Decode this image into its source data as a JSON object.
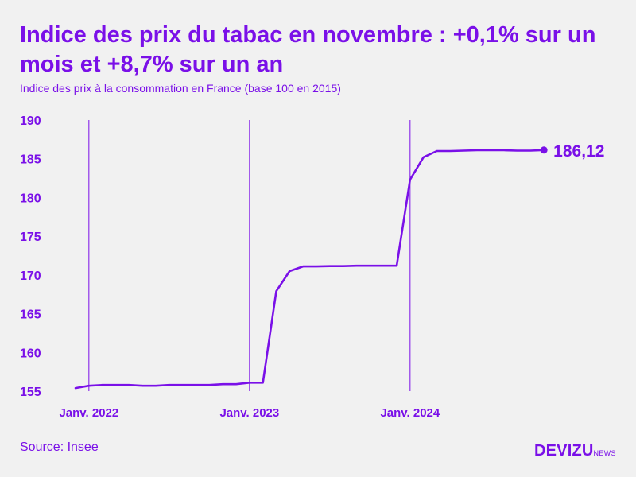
{
  "title": "Indice des prix du tabac en novembre : +0,1% sur un mois et +8,7% sur un an",
  "subtitle": "Indice des prix à la consommation en France (base 100 en 2015)",
  "source": "Source: Insee",
  "logo": {
    "main": "DEVIZU",
    "sub": "NEWS"
  },
  "colors": {
    "accent": "#7a10e8",
    "background": "#f1f1f1",
    "line": "#7a10e8"
  },
  "chart_data": {
    "type": "line",
    "title": "Indice des prix du tabac en novembre : +0,1% sur un mois et +8,7% sur un an",
    "subtitle": "Indice des prix à la consommation en France (base 100 en 2015)",
    "xlabel": "",
    "ylabel": "",
    "ylim": [
      155,
      190
    ],
    "yticks": [
      190,
      185,
      180,
      175,
      170,
      165,
      160,
      155
    ],
    "xticks": [
      "Janv. 2022",
      "Janv. 2023",
      "Janv. 2024"
    ],
    "x": [
      "2021-12",
      "2022-01",
      "2022-02",
      "2022-03",
      "2022-04",
      "2022-05",
      "2022-06",
      "2022-07",
      "2022-08",
      "2022-09",
      "2022-10",
      "2022-11",
      "2022-12",
      "2023-01",
      "2023-02",
      "2023-03",
      "2023-04",
      "2023-05",
      "2023-06",
      "2023-07",
      "2023-08",
      "2023-09",
      "2023-10",
      "2023-11",
      "2023-12",
      "2024-01",
      "2024-02",
      "2024-03",
      "2024-04",
      "2024-05",
      "2024-06",
      "2024-07",
      "2024-08",
      "2024-09",
      "2024-10",
      "2024-11"
    ],
    "values": [
      155.4,
      155.7,
      155.8,
      155.8,
      155.8,
      155.7,
      155.7,
      155.8,
      155.8,
      155.8,
      155.8,
      155.9,
      155.9,
      156.1,
      156.1,
      167.9,
      170.5,
      171.1,
      171.1,
      171.15,
      171.15,
      171.2,
      171.2,
      171.2,
      171.2,
      182.3,
      185.2,
      186.0,
      186.0,
      186.05,
      186.1,
      186.1,
      186.1,
      186.05,
      186.05,
      186.12
    ],
    "last_label": "186,12",
    "grid": "vertical lines at January of each year",
    "legend": "none"
  }
}
